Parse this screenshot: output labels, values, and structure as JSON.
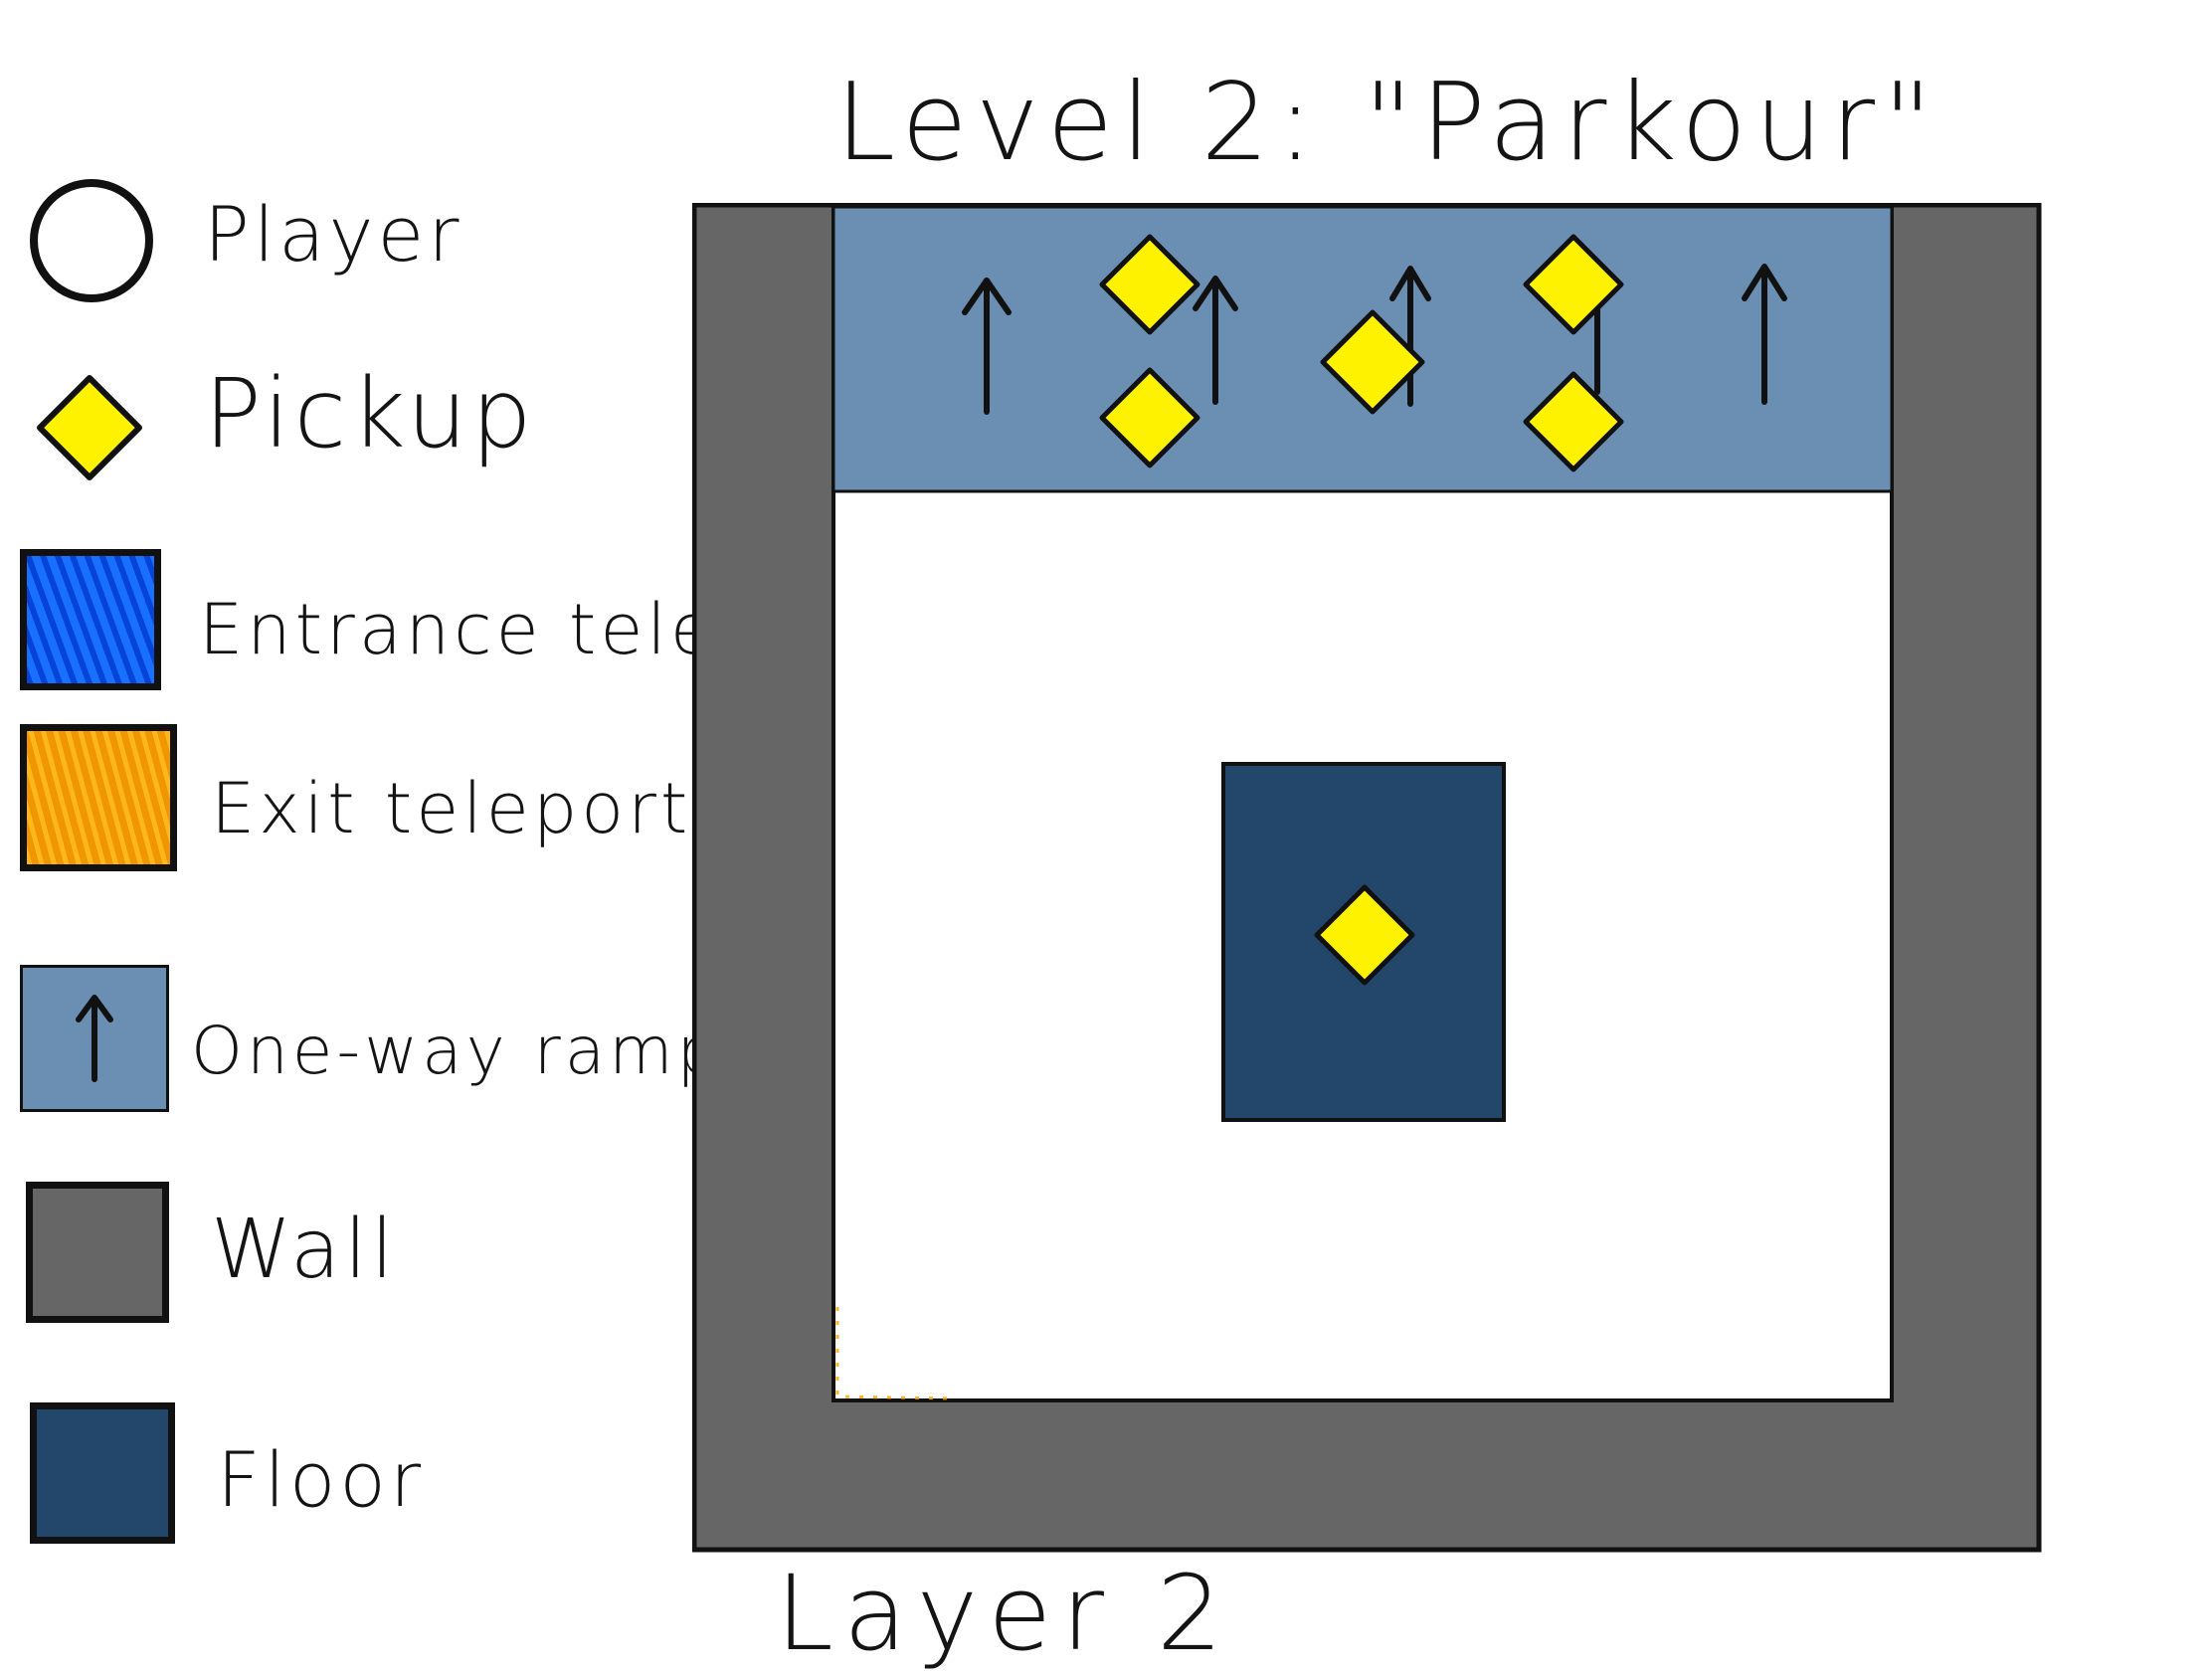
{
  "title": "Level 2: \"Parkour\"",
  "footer_label": "Layer 2",
  "colors": {
    "wall": "#666666",
    "floor": "#22476b",
    "ramp": "#6b8fb3",
    "pickup": "#fff200",
    "entrance_teleporter": "#0a66ff",
    "exit_teleporter": "#ffa500",
    "outline": "#111111"
  },
  "legend": [
    {
      "key": "player",
      "label": "Player",
      "icon": "circle-outline-icon"
    },
    {
      "key": "pickup",
      "label": "Pickup",
      "icon": "yellow-diamond-icon"
    },
    {
      "key": "entrance",
      "label": "Entrance tele.",
      "icon": "blue-scribble-square-icon"
    },
    {
      "key": "exit",
      "label": "Exit teleporter",
      "icon": "orange-scribble-square-icon"
    },
    {
      "key": "ramp",
      "label": "One-way ramp",
      "icon": "up-arrow-icon"
    },
    {
      "key": "wall",
      "label": "Wall",
      "icon": "gray-square-icon"
    },
    {
      "key": "floor",
      "label": "Floor",
      "icon": "navy-square-icon"
    }
  ]
}
